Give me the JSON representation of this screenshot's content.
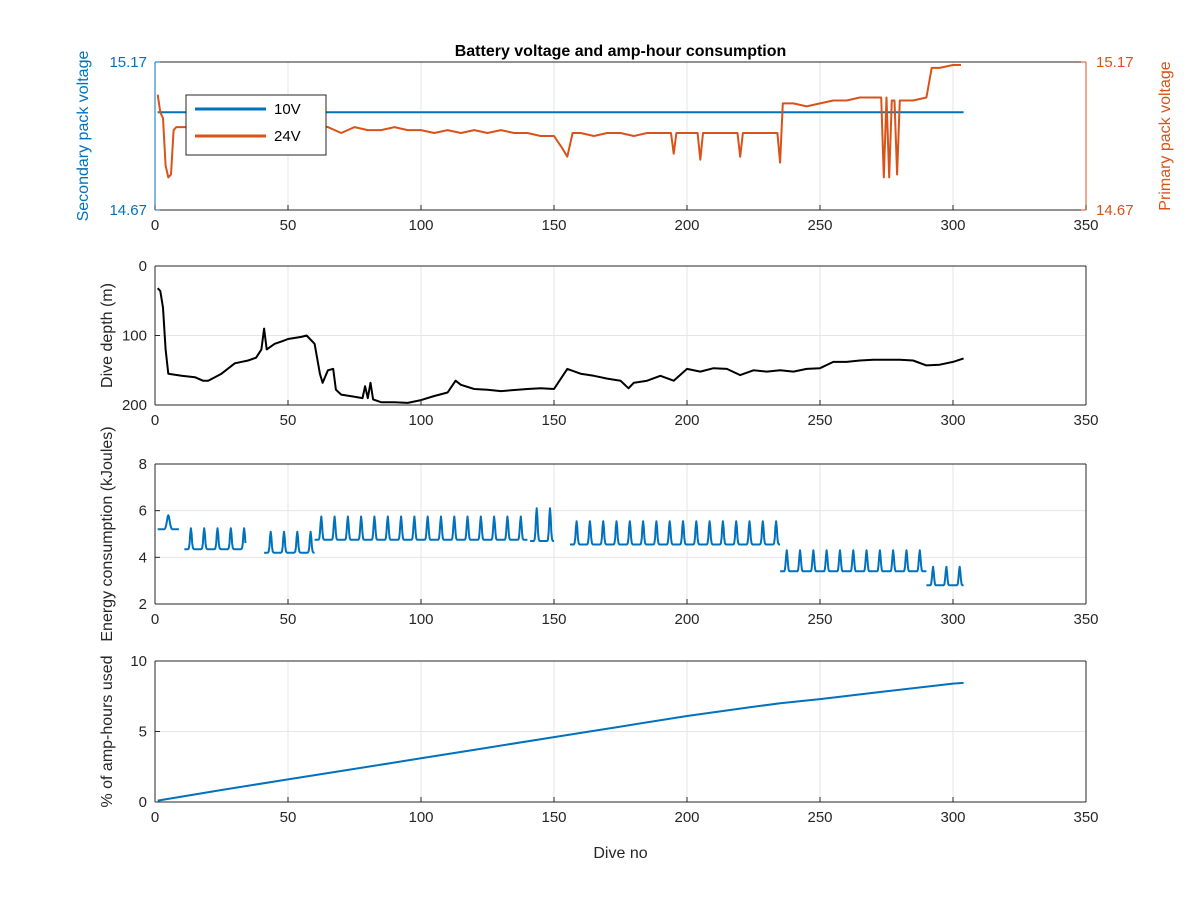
{
  "chart_data": [
    {
      "type": "line",
      "title": "Battery voltage and amp-hour consumption",
      "xlabel": "",
      "ylabel_left": "Secondary pack voltage",
      "ylabel_right": "Primary pack voltage",
      "xlim": [
        0,
        350
      ],
      "ylim_left": [
        14.67,
        15.17
      ],
      "ylim_right": [
        14.67,
        15.17
      ],
      "xticks": [
        0,
        50,
        100,
        150,
        200,
        250,
        300,
        350
      ],
      "yticks_left": [
        14.67,
        15.17
      ],
      "yticks_right": [
        14.67,
        15.17
      ],
      "ytick_labels_left": [
        "14.67",
        "15.17"
      ],
      "ytick_labels_right": [
        "14.67",
        "15.17"
      ],
      "grid": true,
      "legend": "top-left",
      "colors": {
        "left_axis": "#0072BD",
        "right_axis": "#D95319"
      },
      "series": [
        {
          "name": "10V",
          "axis": "left",
          "color": "#0072BD",
          "x": [
            1,
            304
          ],
          "y": [
            15.0,
            15.0
          ]
        },
        {
          "name": "24V",
          "axis": "right",
          "color": "#D95319",
          "x": [
            1,
            2,
            3,
            4,
            5,
            6,
            7,
            8,
            10,
            15,
            20,
            25,
            30,
            35,
            40,
            45,
            50,
            55,
            60,
            65,
            70,
            75,
            80,
            85,
            90,
            95,
            100,
            105,
            110,
            115,
            120,
            125,
            130,
            135,
            140,
            145,
            150,
            153,
            155,
            157,
            160,
            165,
            170,
            175,
            180,
            185,
            190,
            194,
            195,
            196,
            200,
            204,
            205,
            206,
            210,
            215,
            219,
            220,
            221,
            225,
            230,
            234,
            235,
            236,
            240,
            245,
            250,
            255,
            260,
            265,
            270,
            273,
            274,
            275,
            276,
            277,
            278,
            279,
            280,
            281,
            282,
            285,
            290,
            292,
            295,
            300,
            303
          ],
          "y": [
            15.06,
            15.0,
            14.98,
            14.82,
            14.78,
            14.79,
            14.94,
            14.95,
            14.95,
            14.95,
            14.94,
            14.95,
            14.94,
            14.95,
            14.94,
            14.95,
            14.96,
            14.97,
            14.96,
            14.95,
            14.93,
            14.95,
            14.94,
            14.94,
            14.95,
            14.94,
            14.94,
            14.93,
            14.94,
            14.93,
            14.94,
            14.93,
            14.94,
            14.93,
            14.93,
            14.92,
            14.92,
            14.88,
            14.85,
            14.93,
            14.93,
            14.92,
            14.93,
            14.93,
            14.92,
            14.93,
            14.93,
            14.93,
            14.86,
            14.93,
            14.93,
            14.93,
            14.84,
            14.93,
            14.93,
            14.93,
            14.93,
            14.85,
            14.93,
            14.93,
            14.93,
            14.93,
            14.83,
            15.03,
            15.03,
            15.02,
            15.03,
            15.04,
            15.04,
            15.05,
            15.05,
            15.05,
            14.78,
            15.05,
            14.78,
            15.04,
            15.04,
            14.79,
            15.04,
            15.04,
            15.04,
            15.04,
            15.05,
            15.15,
            15.15,
            15.16,
            15.16
          ]
        }
      ]
    },
    {
      "type": "line",
      "title": "",
      "xlabel": "",
      "ylabel": "Dive depth (m)",
      "xlim": [
        0,
        350
      ],
      "ylim": [
        0,
        200
      ],
      "y_reversed": true,
      "xticks": [
        0,
        50,
        100,
        150,
        200,
        250,
        300,
        350
      ],
      "yticks": [
        0,
        100,
        200
      ],
      "grid": true,
      "series": [
        {
          "color": "#000000",
          "x": [
            1,
            2,
            3,
            4,
            5,
            10,
            15,
            18,
            20,
            25,
            30,
            35,
            38,
            40,
            41,
            42,
            45,
            48,
            50,
            55,
            57,
            60,
            62,
            63,
            65,
            67,
            68,
            70,
            75,
            78,
            79,
            80,
            81,
            82,
            85,
            90,
            95,
            100,
            105,
            110,
            113,
            115,
            120,
            125,
            130,
            140,
            145,
            150,
            155,
            160,
            165,
            170,
            175,
            178,
            180,
            185,
            190,
            195,
            200,
            205,
            210,
            215,
            220,
            225,
            230,
            235,
            240,
            245,
            250,
            255,
            260,
            265,
            270,
            275,
            280,
            285,
            290,
            295,
            300,
            304
          ],
          "y": [
            32,
            36,
            60,
            120,
            155,
            158,
            160,
            165,
            165,
            155,
            140,
            136,
            132,
            120,
            90,
            120,
            112,
            108,
            105,
            102,
            100,
            112,
            155,
            168,
            150,
            148,
            178,
            185,
            188,
            190,
            173,
            190,
            168,
            192,
            196,
            196,
            197,
            193,
            187,
            182,
            165,
            171,
            177,
            178,
            180,
            177,
            176,
            177,
            148,
            155,
            158,
            162,
            165,
            176,
            168,
            165,
            158,
            165,
            148,
            152,
            147,
            148,
            157,
            150,
            152,
            150,
            152,
            148,
            147,
            138,
            138,
            136,
            135,
            135,
            135,
            136,
            143,
            142,
            138,
            133
          ]
        }
      ]
    },
    {
      "type": "line",
      "title": "",
      "xlabel": "",
      "ylabel": "Energy consumption (kJoules)",
      "xlim": [
        0,
        350
      ],
      "ylim": [
        2,
        8
      ],
      "xticks": [
        0,
        50,
        100,
        150,
        200,
        250,
        300,
        350
      ],
      "yticks": [
        2,
        4,
        6,
        8
      ],
      "grid": true,
      "series": [
        {
          "color": "#0072BD",
          "segments": [
            {
              "x_start": 1,
              "x_end": 9,
              "baseline": 5.2,
              "period": 8,
              "amp": 0.6
            },
            {
              "x_start": 11,
              "x_end": 34,
              "baseline": 4.35,
              "period": 5,
              "amp": 0.9
            },
            {
              "x_start": 41,
              "x_end": 60,
              "baseline": 4.2,
              "period": 5,
              "amp": 0.9
            },
            {
              "x_start": 60,
              "x_end": 140,
              "baseline": 4.75,
              "period": 5,
              "amp": 1.0
            },
            {
              "x_start": 141,
              "x_end": 150,
              "baseline": 4.7,
              "period": 5,
              "amp": 1.4
            },
            {
              "x_start": 156,
              "x_end": 235,
              "baseline": 4.55,
              "period": 5,
              "amp": 1.0
            },
            {
              "x_start": 235,
              "x_end": 290,
              "baseline": 3.4,
              "period": 5,
              "amp": 0.9
            },
            {
              "x_start": 290,
              "x_end": 304,
              "baseline": 2.8,
              "period": 5,
              "amp": 0.8
            }
          ]
        }
      ]
    },
    {
      "type": "line",
      "title": "",
      "xlabel": "Dive no",
      "ylabel": "% of amp-hours used",
      "xlim": [
        0,
        350
      ],
      "ylim": [
        0,
        10
      ],
      "xticks": [
        0,
        50,
        100,
        150,
        200,
        250,
        300,
        350
      ],
      "yticks": [
        0,
        5,
        10
      ],
      "grid": true,
      "series": [
        {
          "color": "#0072BD",
          "x": [
            1,
            25,
            50,
            75,
            100,
            125,
            150,
            175,
            200,
            225,
            235,
            250,
            275,
            300,
            304
          ],
          "y": [
            0.1,
            0.85,
            1.6,
            2.35,
            3.1,
            3.85,
            4.6,
            5.35,
            6.1,
            6.75,
            7.0,
            7.3,
            7.85,
            8.4,
            8.45
          ]
        }
      ]
    }
  ]
}
